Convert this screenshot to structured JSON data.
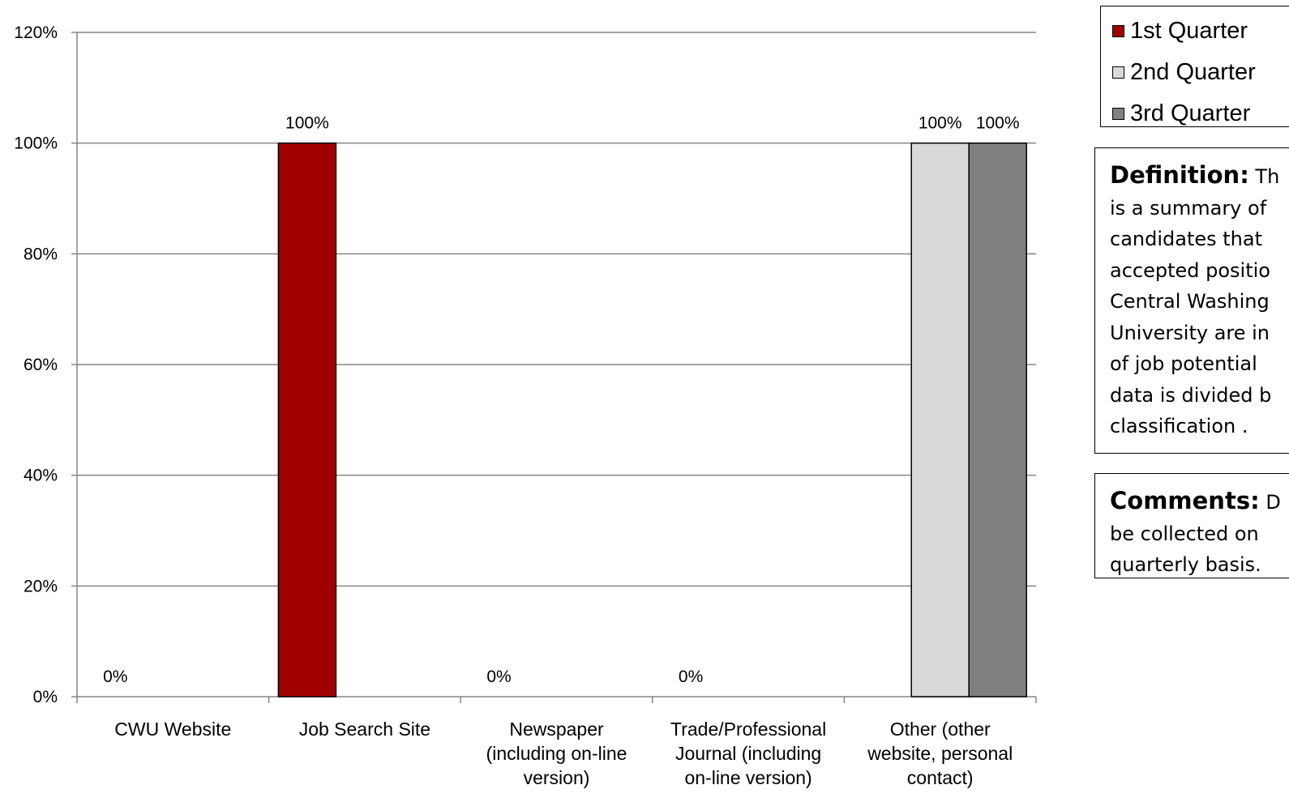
{
  "chart_data": {
    "type": "bar",
    "categories": [
      [
        "CWU Website"
      ],
      [
        "Job Search Site"
      ],
      [
        "Newspaper",
        "(including on-line",
        "version)"
      ],
      [
        "Trade/Professional",
        "Journal (including",
        "on-line version)"
      ],
      [
        "Other (other",
        "website, personal",
        "contact)"
      ]
    ],
    "series": [
      {
        "name": "1st Quarter",
        "color": "#a00000",
        "values": [
          0,
          100,
          0,
          0,
          null
        ],
        "labels": [
          "0%",
          "100%",
          "0%",
          "0%",
          ""
        ]
      },
      {
        "name": "2nd Quarter",
        "color": "#d9d9d9",
        "values": [
          null,
          null,
          null,
          null,
          100
        ],
        "labels": [
          "",
          "",
          "",
          "",
          "100%"
        ]
      },
      {
        "name": "3rd Quarter",
        "color": "#808080",
        "values": [
          null,
          null,
          null,
          null,
          100
        ],
        "labels": [
          "",
          "",
          "",
          "",
          "100%"
        ]
      }
    ],
    "y_ticks": [
      "0%",
      "20%",
      "40%",
      "60%",
      "80%",
      "100%",
      "120%"
    ],
    "ylim": [
      0,
      120
    ],
    "grid": true,
    "legend_position": "top-right"
  },
  "legend": [
    {
      "label": "1st Quarter",
      "color": "#a00000"
    },
    {
      "label": "2nd Quarter",
      "color": "#d9d9d9"
    },
    {
      "label": "3rd Quarter",
      "color": "#808080"
    }
  ],
  "definition": {
    "label": "Definition:",
    "text": "  Th\nis a summary of\ncandidates that\naccepted positio\nCentral Washing\nUniversity are in\nof job potential\ndata is divided b\nclassification ."
  },
  "comments": {
    "label": "Comments:",
    "text": " D\nbe collected on\nquarterly basis."
  }
}
